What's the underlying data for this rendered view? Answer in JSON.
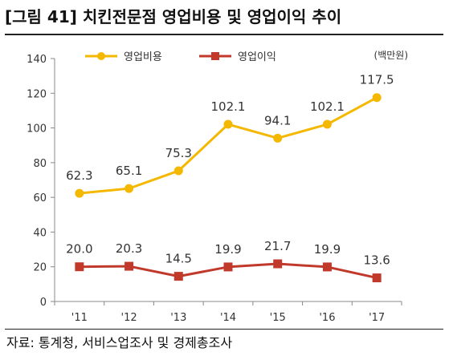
{
  "title": "[그림 41] 치킨전문점 영업비용 및 영업이익 추이",
  "source": "자료: 통계청, 서비스업조사 및 경제총조사",
  "chart_data": {
    "type": "line",
    "categories": [
      "'11",
      "'12",
      "'13",
      "'14",
      "'15",
      "'16",
      "'17"
    ],
    "unit": "(백만원)",
    "ylim": [
      0,
      140
    ],
    "yticks": [
      "0",
      "20",
      "40",
      "60",
      "80",
      "100",
      "120",
      "140"
    ],
    "grid": false,
    "legend_position": "top-left",
    "series": [
      {
        "name": "영업비용",
        "color": "#F5B800",
        "marker": "circle",
        "values": [
          62.3,
          65.1,
          75.3,
          102.1,
          94.1,
          102.1,
          117.5
        ],
        "labels": [
          "62.3",
          "65.1",
          "75.3",
          "102.1",
          "94.1",
          "102.1",
          "117.5"
        ]
      },
      {
        "name": "영업이익",
        "color": "#C0392B",
        "marker": "square",
        "values": [
          20.0,
          20.3,
          14.5,
          19.9,
          21.7,
          19.9,
          13.6
        ],
        "labels": [
          "20.0",
          "20.3",
          "14.5",
          "19.9",
          "21.7",
          "19.9",
          "13.6"
        ]
      }
    ]
  }
}
